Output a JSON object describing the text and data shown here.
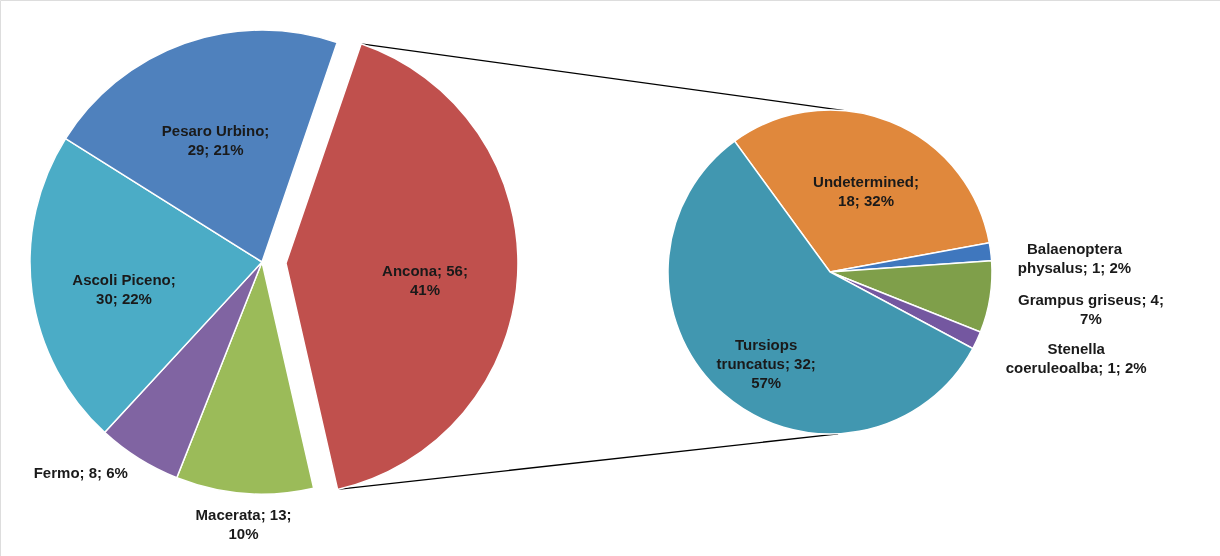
{
  "chart_data": [
    {
      "type": "pie",
      "categories": [
        "Ancona; 56; 41%",
        "Macerata; 13; 10%",
        "Fermo; 8; 6%",
        "Ascoli Piceno; 30; 22%",
        "Pesaro Urbino; 29; 21%"
      ],
      "values": [
        56,
        13,
        8,
        30,
        29
      ],
      "colors": [
        "#c0504d",
        "#9bbb59",
        "#8064a2",
        "#4bacc6",
        "#4f81bd"
      ]
    },
    {
      "type": "pie",
      "categories": [
        "Undetermined; 18; 32%",
        "Balaenoptera physalus; 1; 2%",
        "Grampus griseus; 4; 7%",
        "Stenella coeruleoalba; 1; 2%",
        "Tursiops truncatus; 32; 57%"
      ],
      "values": [
        18,
        1,
        4,
        1,
        32
      ],
      "colors": [
        "#e0883c",
        "#3f77be",
        "#7f9f4a",
        "#7457a0",
        "#4197b0"
      ]
    }
  ]
}
